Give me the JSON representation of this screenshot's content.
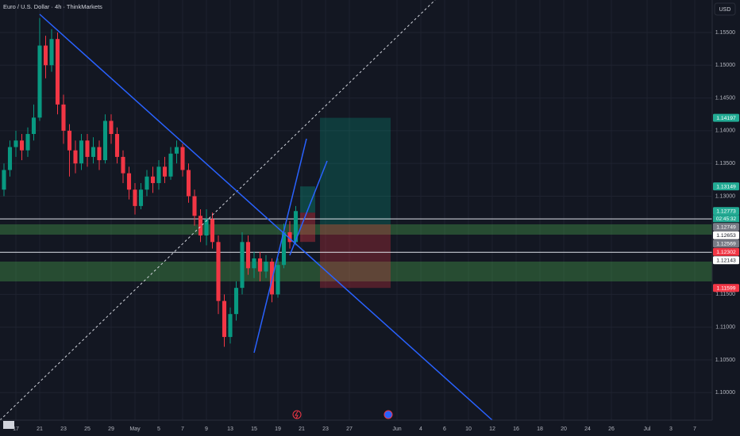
{
  "header": {
    "title": "Euro / U.S. Dollar · 4h · ThinkMarkets",
    "currency": "USD",
    "countdown": "02:45:32"
  },
  "chart_data": {
    "type": "candlestick",
    "up_color": "#089981",
    "down_color": "#f23645",
    "grid": true,
    "xlim": [
      -1.333,
      58.467
    ],
    "ylim": [
      1.0958,
      1.15996
    ],
    "xticks": [
      {
        "value": 0,
        "label": "17"
      },
      {
        "value": 2,
        "label": "21"
      },
      {
        "value": 4,
        "label": "23"
      },
      {
        "value": 6,
        "label": "25"
      },
      {
        "value": 8,
        "label": "29"
      },
      {
        "value": 10,
        "label": "May"
      },
      {
        "value": 12,
        "label": "5"
      },
      {
        "value": 14,
        "label": "7"
      },
      {
        "value": 16,
        "label": "9"
      },
      {
        "value": 18,
        "label": "13"
      },
      {
        "value": 20,
        "label": "15"
      },
      {
        "value": 22,
        "label": "19"
      },
      {
        "value": 24,
        "label": "21"
      },
      {
        "value": 26,
        "label": "23"
      },
      {
        "value": 28,
        "label": "27"
      },
      {
        "value": 32,
        "label": "Jun"
      },
      {
        "value": 34,
        "label": "4"
      },
      {
        "value": 36,
        "label": "6"
      },
      {
        "value": 38,
        "label": "10"
      },
      {
        "value": 40,
        "label": "12"
      },
      {
        "value": 42,
        "label": "16"
      },
      {
        "value": 44,
        "label": "18"
      },
      {
        "value": 46,
        "label": "20"
      },
      {
        "value": 48,
        "label": "24"
      },
      {
        "value": 50,
        "label": "26"
      },
      {
        "value": 53,
        "label": "Jul"
      },
      {
        "value": 55,
        "label": "3"
      },
      {
        "value": 57,
        "label": "7"
      }
    ],
    "yticks": [
      {
        "value": 1.155,
        "label": "1.15500"
      },
      {
        "value": 1.15,
        "label": "1.15000"
      },
      {
        "value": 1.145,
        "label": "1.14500"
      },
      {
        "value": 1.14,
        "label": "1.14000"
      },
      {
        "value": 1.135,
        "label": "1.13500"
      },
      {
        "value": 1.13,
        "label": "1.13000"
      },
      {
        "value": 1.115,
        "label": "1.11500"
      },
      {
        "value": 1.11,
        "label": "1.11000"
      },
      {
        "value": 1.105,
        "label": "1.10500"
      },
      {
        "value": 1.1,
        "label": "1.10000"
      }
    ],
    "x": [
      -1,
      -0.5,
      0,
      0.5,
      1,
      1.5,
      2,
      2.5,
      3,
      3.5,
      4,
      4.5,
      5,
      5.5,
      6,
      6.5,
      7,
      7.5,
      8,
      8.5,
      9,
      9.5,
      10,
      10.5,
      11,
      11.5,
      12,
      12.5,
      13,
      13.5,
      14,
      14.5,
      15,
      15.5,
      16,
      16.5,
      17,
      17.5,
      18,
      18.5,
      19,
      19.5,
      20,
      20.5,
      21,
      21.5,
      22,
      22.5,
      23,
      23.5
    ],
    "open": [
      1.131,
      1.134,
      1.1375,
      1.1385,
      1.137,
      1.1395,
      1.142,
      1.153,
      1.15,
      1.154,
      1.144,
      1.14,
      1.137,
      1.135,
      1.1385,
      1.136,
      1.1375,
      1.1355,
      1.1415,
      1.1395,
      1.136,
      1.1335,
      1.131,
      1.1285,
      1.131,
      1.133,
      1.132,
      1.1345,
      1.133,
      1.1365,
      1.1375,
      1.134,
      1.13,
      1.127,
      1.124,
      1.1265,
      1.123,
      1.114,
      1.1085,
      1.112,
      1.116,
      1.123,
      1.119,
      1.1205,
      1.1185,
      1.12,
      1.115,
      1.1195,
      1.1245,
      1.123
    ],
    "high": [
      1.135,
      1.1385,
      1.14,
      1.1395,
      1.1405,
      1.144,
      1.1572,
      1.1545,
      1.1555,
      1.155,
      1.1455,
      1.141,
      1.1385,
      1.1395,
      1.1395,
      1.139,
      1.1385,
      1.1425,
      1.1425,
      1.1405,
      1.137,
      1.1345,
      1.132,
      1.132,
      1.134,
      1.1345,
      1.1355,
      1.136,
      1.1375,
      1.1385,
      1.138,
      1.135,
      1.131,
      1.128,
      1.128,
      1.1275,
      1.124,
      1.115,
      1.113,
      1.117,
      1.1245,
      1.124,
      1.1215,
      1.1215,
      1.121,
      1.1205,
      1.1205,
      1.1258,
      1.1262,
      1.1285
    ],
    "low": [
      1.13,
      1.133,
      1.136,
      1.1355,
      1.136,
      1.1385,
      1.1415,
      1.148,
      1.149,
      1.1425,
      1.138,
      1.133,
      1.1335,
      1.134,
      1.1345,
      1.135,
      1.134,
      1.135,
      1.138,
      1.135,
      1.132,
      1.1295,
      1.1272,
      1.128,
      1.13,
      1.1305,
      1.131,
      1.132,
      1.1325,
      1.135,
      1.133,
      1.129,
      1.1255,
      1.123,
      1.1225,
      1.122,
      1.112,
      1.107,
      1.1075,
      1.111,
      1.115,
      1.118,
      1.1175,
      1.117,
      1.1175,
      1.1138,
      1.1145,
      1.119,
      1.122,
      1.1225
    ],
    "close": [
      1.134,
      1.1375,
      1.1385,
      1.137,
      1.1395,
      1.142,
      1.153,
      1.15,
      1.154,
      1.144,
      1.14,
      1.137,
      1.135,
      1.1385,
      1.136,
      1.1375,
      1.1355,
      1.1415,
      1.1395,
      1.136,
      1.1335,
      1.131,
      1.1285,
      1.131,
      1.133,
      1.132,
      1.1345,
      1.133,
      1.1365,
      1.1375,
      1.134,
      1.13,
      1.127,
      1.124,
      1.1265,
      1.123,
      1.114,
      1.1085,
      1.112,
      1.116,
      1.123,
      1.119,
      1.1205,
      1.1185,
      1.12,
      1.115,
      1.1195,
      1.1245,
      1.123,
      1.12773
    ],
    "price_labels": [
      {
        "value": 1.14197,
        "color": "#22ab94",
        "text_color": "#ffffff"
      },
      {
        "value": 1.13149,
        "color": "#22ab94",
        "text_color": "#ffffff"
      },
      {
        "value": 1.12773,
        "color": "#22ab94",
        "text_color": "#ffffff"
      },
      {
        "value": 1.12749,
        "color": "#787b86",
        "text_color": "#ffffff"
      },
      {
        "value": 1.12653,
        "color": "#ffffff",
        "text_color": "#131722"
      },
      {
        "value": 1.12569,
        "color": "#787b86",
        "text_color": "#ffffff"
      },
      {
        "value": 1.12302,
        "color": "#f23645",
        "text_color": "#ffffff"
      },
      {
        "value": 1.12143,
        "color": "#ffffff",
        "text_color": "#131722"
      },
      {
        "value": 1.11599,
        "color": "#f23645",
        "text_color": "#ffffff"
      }
    ]
  }
}
